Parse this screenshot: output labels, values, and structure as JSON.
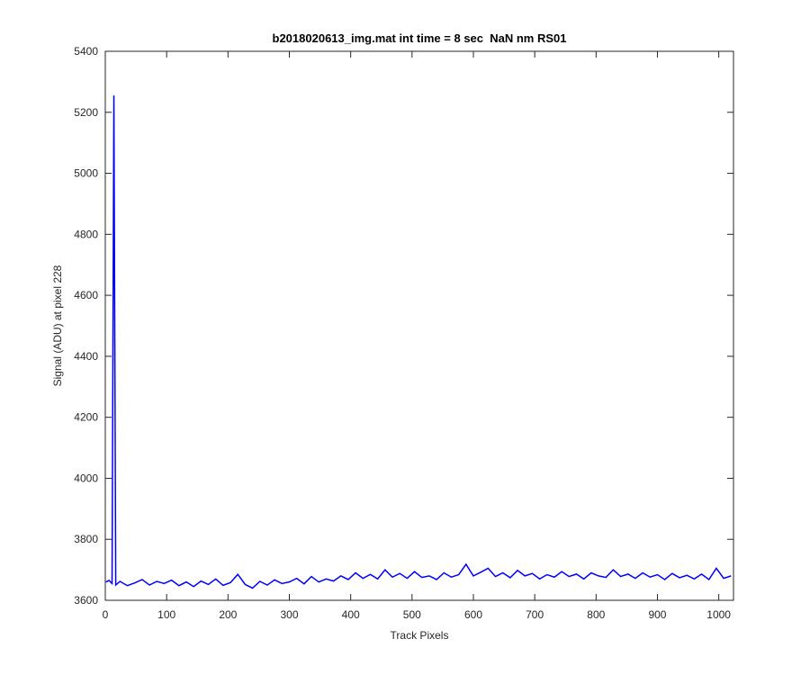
{
  "chart_data": {
    "type": "line",
    "title": "b2018020613_img.mat int time = 8 sec  NaN nm RS01",
    "x_label": "Track Pixels",
    "y_label": "Signal (ADU) at pixel 228",
    "xlim": [
      0,
      1024
    ],
    "ylim": [
      3600,
      5400
    ],
    "xticks": [
      0,
      100,
      200,
      300,
      400,
      500,
      600,
      700,
      800,
      900,
      1000
    ],
    "yticks": [
      3600,
      3800,
      4000,
      4200,
      4400,
      4600,
      4800,
      5000,
      5200,
      5400
    ],
    "grid": false,
    "x": [
      1,
      6,
      11,
      14,
      17,
      24,
      36,
      48,
      60,
      72,
      84,
      96,
      108,
      120,
      132,
      144,
      156,
      168,
      180,
      192,
      204,
      216,
      228,
      240,
      252,
      264,
      276,
      288,
      300,
      312,
      324,
      336,
      348,
      360,
      372,
      384,
      396,
      408,
      420,
      432,
      444,
      456,
      468,
      480,
      492,
      504,
      516,
      528,
      540,
      552,
      564,
      576,
      588,
      600,
      612,
      624,
      636,
      648,
      660,
      672,
      684,
      696,
      708,
      720,
      732,
      744,
      756,
      768,
      780,
      792,
      804,
      816,
      828,
      840,
      852,
      864,
      876,
      888,
      900,
      912,
      924,
      936,
      948,
      960,
      972,
      984,
      996,
      1008,
      1020
    ],
    "series": [
      {
        "color": "#0000ff",
        "values": [
          3660,
          3665,
          3655,
          5255,
          3650,
          3662,
          3648,
          3657,
          3668,
          3650,
          3662,
          3655,
          3666,
          3648,
          3660,
          3645,
          3663,
          3652,
          3670,
          3649,
          3658,
          3685,
          3652,
          3640,
          3662,
          3650,
          3667,
          3655,
          3660,
          3672,
          3654,
          3678,
          3660,
          3670,
          3663,
          3680,
          3668,
          3690,
          3672,
          3685,
          3670,
          3700,
          3676,
          3688,
          3672,
          3694,
          3675,
          3680,
          3668,
          3690,
          3676,
          3684,
          3718,
          3680,
          3692,
          3705,
          3678,
          3690,
          3674,
          3698,
          3680,
          3688,
          3670,
          3684,
          3676,
          3694,
          3678,
          3686,
          3670,
          3690,
          3680,
          3675,
          3700,
          3678,
          3686,
          3672,
          3690,
          3676,
          3684,
          3668,
          3688,
          3674,
          3682,
          3670,
          3686,
          3668,
          3705,
          3672,
          3680
        ]
      }
    ]
  }
}
